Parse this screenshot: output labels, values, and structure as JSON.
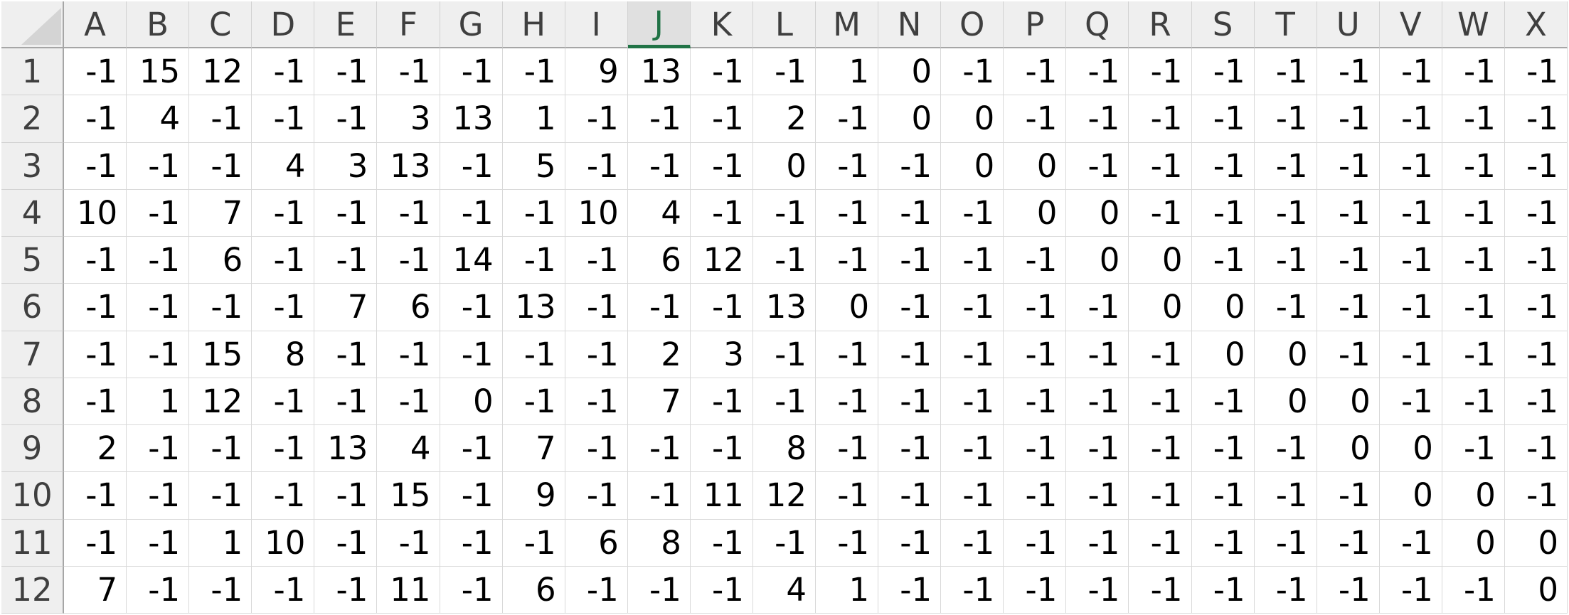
{
  "colors": {
    "header_bg": "#efefef",
    "header_text": "#3f3f3f",
    "selected_header_bg": "#e0e0e0",
    "selected_header_accent": "#217346",
    "gridline": "#d9d9d9",
    "header_separator": "#a6a6a6",
    "cell_bg": "#ffffff",
    "cell_text": "#000000",
    "select_all_triangle": "#d4d4d4"
  },
  "sheet": {
    "selected_column": "J",
    "columns": [
      "A",
      "B",
      "C",
      "D",
      "E",
      "F",
      "G",
      "H",
      "I",
      "J",
      "K",
      "L",
      "M",
      "N",
      "O",
      "P",
      "Q",
      "R",
      "S",
      "T",
      "U",
      "V",
      "W",
      "X"
    ],
    "rows": [
      {
        "label": "1",
        "values": [
          -1,
          15,
          12,
          -1,
          -1,
          -1,
          -1,
          -1,
          9,
          13,
          -1,
          -1,
          1,
          0,
          -1,
          -1,
          -1,
          -1,
          -1,
          -1,
          -1,
          -1,
          -1,
          -1
        ]
      },
      {
        "label": "2",
        "values": [
          -1,
          4,
          -1,
          -1,
          -1,
          3,
          13,
          1,
          -1,
          -1,
          -1,
          2,
          -1,
          0,
          0,
          -1,
          -1,
          -1,
          -1,
          -1,
          -1,
          -1,
          -1,
          -1
        ]
      },
      {
        "label": "3",
        "values": [
          -1,
          -1,
          -1,
          4,
          3,
          13,
          -1,
          5,
          -1,
          -1,
          -1,
          0,
          -1,
          -1,
          0,
          0,
          -1,
          -1,
          -1,
          -1,
          -1,
          -1,
          -1,
          -1
        ]
      },
      {
        "label": "4",
        "values": [
          10,
          -1,
          7,
          -1,
          -1,
          -1,
          -1,
          -1,
          10,
          4,
          -1,
          -1,
          -1,
          -1,
          -1,
          0,
          0,
          -1,
          -1,
          -1,
          -1,
          -1,
          -1,
          -1
        ]
      },
      {
        "label": "5",
        "values": [
          -1,
          -1,
          6,
          -1,
          -1,
          -1,
          14,
          -1,
          -1,
          6,
          12,
          -1,
          -1,
          -1,
          -1,
          -1,
          0,
          0,
          -1,
          -1,
          -1,
          -1,
          -1,
          -1
        ]
      },
      {
        "label": "6",
        "values": [
          -1,
          -1,
          -1,
          -1,
          7,
          6,
          -1,
          13,
          -1,
          -1,
          -1,
          13,
          0,
          -1,
          -1,
          -1,
          -1,
          0,
          0,
          -1,
          -1,
          -1,
          -1,
          -1
        ]
      },
      {
        "label": "7",
        "values": [
          -1,
          -1,
          15,
          8,
          -1,
          -1,
          -1,
          -1,
          -1,
          2,
          3,
          -1,
          -1,
          -1,
          -1,
          -1,
          -1,
          -1,
          0,
          0,
          -1,
          -1,
          -1,
          -1
        ]
      },
      {
        "label": "8",
        "values": [
          -1,
          1,
          12,
          -1,
          -1,
          -1,
          0,
          -1,
          -1,
          7,
          -1,
          -1,
          -1,
          -1,
          -1,
          -1,
          -1,
          -1,
          -1,
          0,
          0,
          -1,
          -1,
          -1
        ]
      },
      {
        "label": "9",
        "values": [
          2,
          -1,
          -1,
          -1,
          13,
          4,
          -1,
          7,
          -1,
          -1,
          -1,
          8,
          -1,
          -1,
          -1,
          -1,
          -1,
          -1,
          -1,
          -1,
          0,
          0,
          -1,
          -1
        ]
      },
      {
        "label": "10",
        "values": [
          -1,
          -1,
          -1,
          -1,
          -1,
          15,
          -1,
          9,
          -1,
          -1,
          11,
          12,
          -1,
          -1,
          -1,
          -1,
          -1,
          -1,
          -1,
          -1,
          -1,
          0,
          0,
          -1
        ]
      },
      {
        "label": "11",
        "values": [
          -1,
          -1,
          1,
          10,
          -1,
          -1,
          -1,
          -1,
          6,
          8,
          -1,
          -1,
          -1,
          -1,
          -1,
          -1,
          -1,
          -1,
          -1,
          -1,
          -1,
          -1,
          0,
          0
        ]
      },
      {
        "label": "12",
        "values": [
          7,
          -1,
          -1,
          -1,
          -1,
          11,
          -1,
          6,
          -1,
          -1,
          -1,
          4,
          1,
          -1,
          -1,
          -1,
          -1,
          -1,
          -1,
          -1,
          -1,
          -1,
          -1,
          0
        ]
      }
    ]
  }
}
